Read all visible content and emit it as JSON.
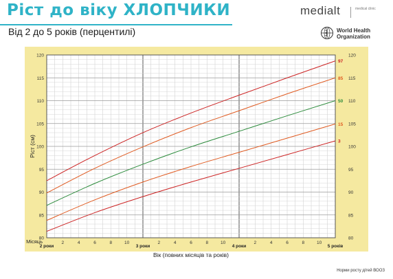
{
  "header": {
    "title": "Ріст до віку ХЛОПЧИКИ",
    "subtitle": "Від 2 до 5 років (перцентилі)",
    "brand_name": "medialt",
    "brand_sub": "medical clinic",
    "who_line1": "World Health",
    "who_line2": "Organization"
  },
  "footer": {
    "note": "Норми росту дітей ВООЗ"
  },
  "colors": {
    "band": "#f5e9a0",
    "accent": "#2fb3c7",
    "p97": "#cc2222",
    "p85": "#e05a20",
    "p50": "#2a8a3a",
    "p15": "#e05a20",
    "p3": "#cc2222"
  },
  "chart_data": {
    "type": "line",
    "xlabel": "Вік (повних місяців та років)",
    "ylabel": "Ріст (см)",
    "x_label_prefix": "Місяць",
    "xlim": [
      24,
      60
    ],
    "ylim": [
      80,
      120
    ],
    "y_ticks": [
      80,
      85,
      90,
      95,
      100,
      105,
      110,
      115,
      120
    ],
    "month_ticks": [
      2,
      4,
      6,
      8,
      10
    ],
    "year_labels": [
      {
        "x": 24,
        "label": "2 роки"
      },
      {
        "x": 36,
        "label": "3 роки"
      },
      {
        "x": 48,
        "label": "4 роки"
      },
      {
        "x": 60,
        "label": "5 років"
      }
    ],
    "x": [
      24,
      30,
      36,
      42,
      48,
      54,
      60
    ],
    "series": [
      {
        "name": "97",
        "color": "#cc2222",
        "values": [
          92.5,
          98.0,
          103.0,
          107.3,
          111.2,
          115.0,
          118.7
        ]
      },
      {
        "name": "85",
        "color": "#e05a20",
        "values": [
          89.8,
          95.2,
          99.9,
          104.1,
          107.8,
          111.5,
          115.0
        ]
      },
      {
        "name": "50",
        "color": "#2a8a3a",
        "values": [
          87.1,
          91.9,
          96.1,
          99.9,
          103.3,
          106.7,
          110.0
        ]
      },
      {
        "name": "15",
        "color": "#e05a20",
        "values": [
          83.8,
          88.3,
          92.2,
          95.6,
          98.7,
          101.8,
          104.9
        ]
      },
      {
        "name": "3",
        "color": "#cc2222",
        "values": [
          81.4,
          85.5,
          89.0,
          92.2,
          95.2,
          98.2,
          101.2
        ]
      }
    ]
  }
}
